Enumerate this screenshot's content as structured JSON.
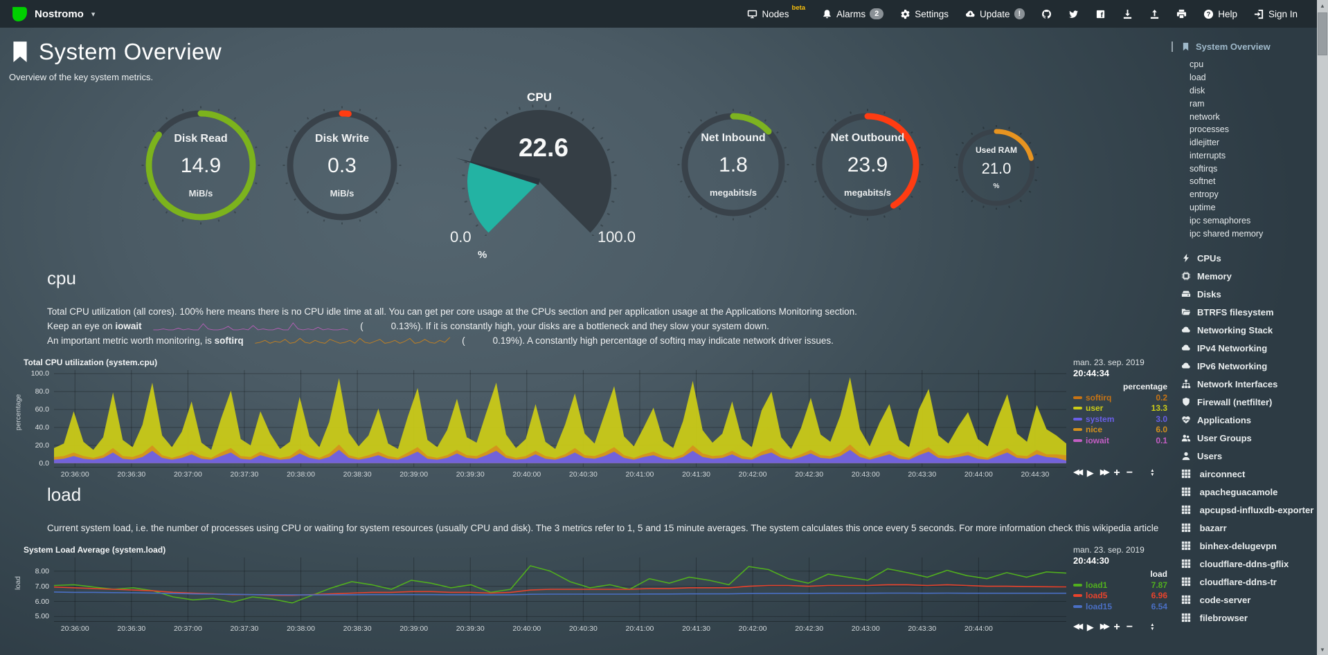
{
  "navbar": {
    "brand": "Nostromo",
    "brand_caret": "▾",
    "items": [
      {
        "label": "Nodes",
        "icon": "monitor-icon",
        "badge": "beta",
        "badge_type": "beta"
      },
      {
        "label": "Alarms",
        "icon": "bell-icon",
        "badge": "2",
        "badge_type": "pill"
      },
      {
        "label": "Settings",
        "icon": "gear-icon"
      },
      {
        "label": "Update",
        "icon": "cloud-download-icon",
        "badge": "!",
        "badge_type": "round"
      },
      {
        "icon": "github-icon"
      },
      {
        "icon": "twitter-icon"
      },
      {
        "icon": "facebook-icon"
      },
      {
        "icon": "download-icon"
      },
      {
        "icon": "upload-icon"
      },
      {
        "icon": "print-icon"
      },
      {
        "label": "Help",
        "icon": "question-icon"
      },
      {
        "label": "Sign In",
        "icon": "signin-icon"
      }
    ]
  },
  "header": {
    "title": "System Overview",
    "subtitle": "Overview of the key system metrics."
  },
  "theme": {
    "gauge_track": "#39424a",
    "grid": "rgba(0,0,0,0.27)",
    "iowait_spark": "#b55fb5",
    "softirq_spark": "#c8821e"
  },
  "gauges": [
    {
      "id": "disk-read",
      "type": "easypie",
      "size": "big",
      "title": "Disk Read",
      "value": "14.9",
      "units": "MiB/s",
      "percent": 85,
      "color": "#7cb31d"
    },
    {
      "id": "disk-write",
      "type": "easypie",
      "size": "big",
      "title": "Disk Write",
      "value": "0.3",
      "units": "MiB/s",
      "percent": 2,
      "color": "#ff3c12"
    },
    {
      "id": "cpu",
      "type": "gauge",
      "title": "CPU",
      "value": "22.6",
      "units": "%",
      "min": "0.0",
      "max": "100.0",
      "percent": 22.6,
      "color": "#23b3a3"
    },
    {
      "id": "net-inbound",
      "type": "easypie",
      "size": "net",
      "title": "Net Inbound",
      "value": "1.8",
      "units": "megabits/s",
      "percent": 13,
      "color": "#7db320"
    },
    {
      "id": "net-outbound",
      "type": "easypie",
      "size": "net",
      "title": "Net Outbound",
      "value": "23.9",
      "units": "megabits/s",
      "percent": 41,
      "color": "#ff3c12"
    },
    {
      "id": "used-ram",
      "type": "easypie",
      "size": "small",
      "title": "Used RAM",
      "value": "21.0",
      "units": "%",
      "percent": 21,
      "color": "#e89420"
    }
  ],
  "cpu_section": {
    "heading": "cpu",
    "line1": "Total CPU utilization (all cores). 100% here means there is no CPU idle time at all. You can get per core usage at the CPUs section and per application usage at the Applications Monitoring section.",
    "line2": {
      "prefix": "Keep an eye on",
      "term": "iowait",
      "open": "(",
      "value": "0.13%",
      "rest": "). If it is constantly high, your disks are a bottleneck and they slow your system down."
    },
    "line3": {
      "prefix": "An important metric worth monitoring, is",
      "term": "softirq",
      "open": "(",
      "value": "0.19%",
      "rest": "). A constantly high percentage of softirq may indicate network driver issues."
    },
    "iowait_spark": [
      1,
      1,
      2,
      1,
      1,
      3,
      1,
      2,
      1,
      1,
      8,
      2,
      1,
      1,
      2,
      5,
      1,
      1,
      2,
      1,
      6,
      1,
      2,
      1,
      1,
      3,
      1,
      1,
      9,
      2,
      1,
      2,
      1,
      4,
      1,
      2,
      1,
      1,
      2,
      1
    ],
    "softirq_spark": [
      2,
      3,
      5,
      2,
      4,
      3,
      6,
      2,
      3,
      7,
      3,
      2,
      5,
      3,
      2,
      6,
      4,
      2,
      3,
      5,
      2,
      7,
      3,
      2,
      4,
      6,
      2,
      3,
      5,
      2,
      4,
      7,
      2,
      3,
      6,
      3,
      2,
      5,
      3,
      8
    ]
  },
  "load_section": {
    "heading": "load",
    "text": "Current system load, i.e. the number of processes using CPU or waiting for system resources (usually CPU and disk). The 3 metrics refer to 1, 5 and 15 minute averages. The system calculates this once every 5 seconds. For more information check this",
    "link_label": "wikipedia article"
  },
  "chart_data": [
    {
      "id": "cpu",
      "type": "area-stacked",
      "title": "Total CPU utilization (system.cpu)",
      "date": "man. 23. sep. 2019",
      "time": "20:44:34",
      "unit_header": "percentage",
      "ylabel": "percentage",
      "ylim": [
        -4,
        104
      ],
      "yticks": [
        {
          "label": "100.0",
          "v": 100
        },
        {
          "label": "80.0",
          "v": 80
        },
        {
          "label": "60.0",
          "v": 60
        },
        {
          "label": "40.0",
          "v": 40
        },
        {
          "label": "20.0",
          "v": 20
        },
        {
          "label": "0.0",
          "v": 0
        }
      ],
      "time_labels": [
        "20:36:00",
        "20:36:30",
        "20:37:00",
        "20:37:30",
        "20:38:00",
        "20:38:30",
        "20:39:00",
        "20:39:30",
        "20:40:00",
        "20:40:30",
        "20:41:00",
        "20:41:30",
        "20:42:00",
        "20:42:30",
        "20:43:00",
        "20:43:30",
        "20:44:00",
        "20:44:30"
      ],
      "stack_order": [
        "system",
        "nice",
        "user"
      ],
      "series": [
        {
          "name": "softirq",
          "color": "#c87414",
          "value": "0.2"
        },
        {
          "name": "user",
          "color": "#cccc17",
          "value": "13.3",
          "data": [
            10,
            14,
            46,
            16,
            9,
            20,
            62,
            18,
            11,
            32,
            70,
            22,
            12,
            26,
            55,
            15,
            9,
            38,
            64,
            19,
            13,
            45,
            24,
            10,
            16,
            58,
            21,
            12,
            35,
            74,
            25,
            13,
            22,
            48,
            14,
            10,
            40,
            66,
            18,
            12,
            28,
            57,
            20,
            15,
            44,
            70,
            23,
            11,
            19,
            52,
            16,
            10,
            33,
            61,
            24,
            14,
            42,
            68,
            21,
            13,
            30,
            49,
            17,
            11,
            37,
            72,
            26,
            15,
            24,
            55,
            19,
            12,
            46,
            63,
            20,
            10,
            29,
            58,
            23,
            16,
            41,
            75,
            27,
            13,
            35,
            52,
            18,
            12,
            47,
            65,
            22,
            14,
            31,
            44,
            19,
            13,
            38,
            60,
            24,
            16,
            50,
            28,
            21,
            13
          ]
        },
        {
          "name": "system",
          "color": "#6a5fe8",
          "value": "3.0",
          "data": [
            4,
            5,
            8,
            5,
            4,
            6,
            12,
            5,
            4,
            7,
            14,
            6,
            4,
            6,
            10,
            5,
            4,
            8,
            12,
            5,
            4,
            9,
            6,
            4,
            5,
            11,
            6,
            4,
            7,
            15,
            6,
            4,
            6,
            9,
            5,
            4,
            8,
            13,
            5,
            4,
            6,
            11,
            6,
            5,
            9,
            14,
            6,
            4,
            5,
            10,
            5,
            4,
            7,
            12,
            6,
            5,
            8,
            13,
            6,
            4,
            7,
            9,
            5,
            4,
            7,
            14,
            7,
            5,
            6,
            10,
            5,
            4,
            9,
            12,
            6,
            4,
            7,
            11,
            6,
            5,
            8,
            15,
            7,
            4,
            7,
            10,
            5,
            4,
            9,
            13,
            6,
            5,
            7,
            9,
            5,
            4,
            8,
            12,
            6,
            5,
            10,
            7,
            6,
            3
          ]
        },
        {
          "name": "nice",
          "color": "#d4901d",
          "value": "6.0",
          "data": [
            3,
            3,
            4,
            3,
            2,
            3,
            5,
            3,
            3,
            4,
            6,
            3,
            2,
            3,
            4,
            3,
            2,
            4,
            5,
            3,
            3,
            4,
            3,
            2,
            3,
            5,
            3,
            2,
            4,
            6,
            3,
            2,
            3,
            4,
            3,
            2,
            4,
            5,
            3,
            2,
            3,
            4,
            3,
            3,
            4,
            6,
            3,
            2,
            3,
            4,
            3,
            2,
            3,
            5,
            3,
            3,
            4,
            5,
            3,
            2,
            3,
            4,
            3,
            2,
            3,
            6,
            4,
            3,
            3,
            4,
            3,
            2,
            4,
            5,
            3,
            2,
            3,
            4,
            3,
            3,
            4,
            6,
            4,
            2,
            3,
            4,
            3,
            2,
            4,
            5,
            3,
            3,
            3,
            4,
            3,
            2,
            4,
            5,
            3,
            3,
            5,
            3,
            4,
            6
          ]
        },
        {
          "name": "iowait",
          "color": "#c45ec4",
          "value": "0.1"
        }
      ]
    },
    {
      "id": "load",
      "type": "line",
      "title": "System Load Average (system.load)",
      "date": "man. 23. sep. 2019",
      "time": "20:44:30",
      "unit_header": "load",
      "ylabel": "load",
      "ylim": [
        4.7,
        8.9
      ],
      "yticks": [
        {
          "label": "8.00",
          "v": 8
        },
        {
          "label": "7.00",
          "v": 7
        },
        {
          "label": "6.00",
          "v": 6
        },
        {
          "label": "5.00",
          "v": 5
        }
      ],
      "time_labels": [
        "20:36:00",
        "20:36:30",
        "20:37:00",
        "20:37:30",
        "20:38:00",
        "20:38:30",
        "20:39:00",
        "20:39:30",
        "20:40:00",
        "20:40:30",
        "20:41:00",
        "20:41:30",
        "20:42:00",
        "20:42:30",
        "20:43:00",
        "20:43:30",
        "20:44:00"
      ],
      "series": [
        {
          "name": "load1",
          "color": "#51af1e",
          "value": "7.87",
          "data": [
            7.05,
            7.1,
            6.95,
            6.8,
            6.9,
            6.7,
            6.3,
            6.1,
            6.2,
            5.95,
            6.3,
            6.15,
            5.9,
            6.4,
            6.9,
            7.3,
            7.1,
            6.8,
            7.4,
            7.2,
            6.9,
            7.1,
            6.6,
            6.8,
            8.35,
            8.0,
            7.3,
            6.9,
            7.1,
            6.8,
            7.5,
            7.2,
            7.6,
            7.4,
            7.1,
            8.3,
            8.1,
            7.5,
            7.2,
            7.8,
            7.6,
            7.4,
            8.15,
            7.9,
            7.6,
            8.05,
            7.7,
            7.5,
            7.9,
            7.6,
            7.95,
            7.87
          ]
        },
        {
          "name": "load5",
          "color": "#e9432c",
          "value": "6.96",
          "data": [
            6.95,
            6.9,
            6.85,
            6.8,
            6.75,
            6.7,
            6.6,
            6.55,
            6.5,
            6.45,
            6.45,
            6.4,
            6.4,
            6.45,
            6.5,
            6.55,
            6.6,
            6.6,
            6.65,
            6.65,
            6.6,
            6.6,
            6.55,
            6.6,
            6.75,
            6.8,
            6.8,
            6.8,
            6.8,
            6.8,
            6.85,
            6.85,
            6.9,
            6.9,
            6.9,
            7.0,
            7.05,
            7.05,
            7.0,
            7.05,
            7.05,
            7.05,
            7.1,
            7.1,
            7.05,
            7.1,
            7.05,
            7.0,
            7.0,
            6.98,
            6.97,
            6.96
          ]
        },
        {
          "name": "load15",
          "color": "#4a6fc4",
          "value": "6.54",
          "data": [
            6.62,
            6.6,
            6.6,
            6.58,
            6.57,
            6.55,
            6.53,
            6.5,
            6.48,
            6.47,
            6.45,
            6.44,
            6.43,
            6.43,
            6.44,
            6.44,
            6.45,
            6.45,
            6.45,
            6.45,
            6.44,
            6.44,
            6.43,
            6.44,
            6.47,
            6.48,
            6.48,
            6.48,
            6.48,
            6.48,
            6.49,
            6.49,
            6.5,
            6.5,
            6.5,
            6.52,
            6.53,
            6.53,
            6.53,
            6.54,
            6.54,
            6.54,
            6.55,
            6.55,
            6.54,
            6.55,
            6.54,
            6.54,
            6.54,
            6.54,
            6.54,
            6.54
          ]
        }
      ]
    }
  ],
  "controls": {
    "rewind": "◀◀",
    "play": "▶",
    "fast_forward": "▶▶",
    "zoom_in": "+",
    "zoom_out": "−",
    "resize_up": "▲",
    "resize_down": "▼"
  },
  "scrollbar": {
    "up": "▲",
    "down": "▼"
  },
  "sidebar": {
    "active": {
      "label": "System Overview",
      "icon": "bookmark-icon"
    },
    "sub_items": [
      "cpu",
      "load",
      "disk",
      "ram",
      "network",
      "processes",
      "idlejitter",
      "interrupts",
      "softirqs",
      "softnet",
      "entropy",
      "uptime",
      "ipc semaphores",
      "ipc shared memory"
    ],
    "sections": [
      {
        "label": "CPUs",
        "icon": "bolt-icon"
      },
      {
        "label": "Memory",
        "icon": "memory-icon"
      },
      {
        "label": "Disks",
        "icon": "hdd-icon"
      },
      {
        "label": "BTRFS filesystem",
        "icon": "folder-open-icon"
      },
      {
        "label": "Networking Stack",
        "icon": "cloud-icon"
      },
      {
        "label": "IPv4 Networking",
        "icon": "cloud-icon"
      },
      {
        "label": "IPv6 Networking",
        "icon": "cloud-icon"
      },
      {
        "label": "Network Interfaces",
        "icon": "sitemap-icon"
      },
      {
        "label": "Firewall (netfilter)",
        "icon": "shield-icon"
      },
      {
        "label": "Applications",
        "icon": "heartbeat-icon"
      },
      {
        "label": "User Groups",
        "icon": "users-icon"
      },
      {
        "label": "Users",
        "icon": "user-icon"
      }
    ],
    "apps": [
      {
        "label": "airconnect",
        "icon": "th-icon"
      },
      {
        "label": "apacheguacamole",
        "icon": "th-icon"
      },
      {
        "label": "apcupsd-influxdb-exporter",
        "icon": "th-icon"
      },
      {
        "label": "bazarr",
        "icon": "th-icon"
      },
      {
        "label": "binhex-delugevpn",
        "icon": "th-icon"
      },
      {
        "label": "cloudflare-ddns-gflix",
        "icon": "th-icon"
      },
      {
        "label": "cloudflare-ddns-tr",
        "icon": "th-icon"
      },
      {
        "label": "code-server",
        "icon": "th-icon"
      },
      {
        "label": "filebrowser",
        "icon": "th-icon"
      }
    ]
  }
}
